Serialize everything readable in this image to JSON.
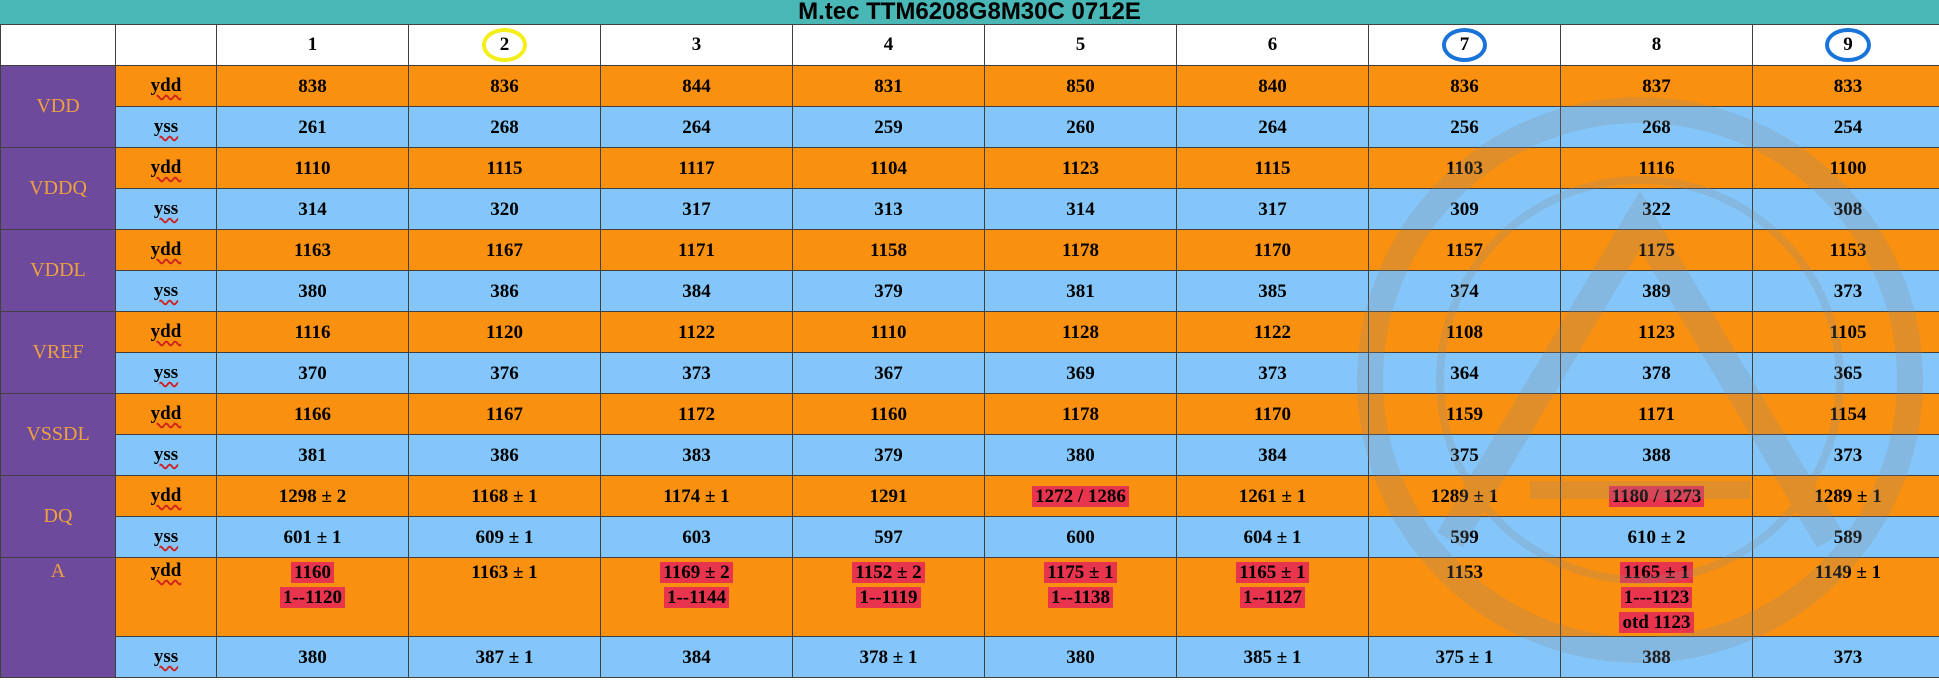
{
  "title": "M.tec TTM6208G8M30C 0712E",
  "columns": [
    "1",
    "2",
    "3",
    "4",
    "5",
    "6",
    "7",
    "8",
    "9"
  ],
  "column_marks": {
    "2": "yellow-circle",
    "7": "blue-circle",
    "9": "blue-circle"
  },
  "colors": {
    "header_bar": "#4ab7b7",
    "ydd_row": "#f9900f",
    "yss_row": "#84c6f9",
    "group_cell": "#6d4a9c",
    "group_text": "#f0a040",
    "highlight": "#e8344c"
  },
  "groups": [
    {
      "name": "VDD",
      "rows": [
        {
          "label": "ydd",
          "cells": [
            [
              "838"
            ],
            [
              "836"
            ],
            [
              "844"
            ],
            [
              "831"
            ],
            [
              "850"
            ],
            [
              "840"
            ],
            [
              "836"
            ],
            [
              "837"
            ],
            [
              "833"
            ]
          ],
          "highlight": []
        },
        {
          "label": "yss",
          "cells": [
            [
              "261"
            ],
            [
              "268"
            ],
            [
              "264"
            ],
            [
              "259"
            ],
            [
              "260"
            ],
            [
              "264"
            ],
            [
              "256"
            ],
            [
              "268"
            ],
            [
              "254"
            ]
          ],
          "highlight": []
        }
      ]
    },
    {
      "name": "VDDQ",
      "rows": [
        {
          "label": "ydd",
          "cells": [
            [
              "1110"
            ],
            [
              "1115"
            ],
            [
              "1117"
            ],
            [
              "1104"
            ],
            [
              "1123"
            ],
            [
              "1115"
            ],
            [
              "1103"
            ],
            [
              "1116"
            ],
            [
              "1100"
            ]
          ],
          "highlight": []
        },
        {
          "label": "yss",
          "cells": [
            [
              "314"
            ],
            [
              "320"
            ],
            [
              "317"
            ],
            [
              "313"
            ],
            [
              "314"
            ],
            [
              "317"
            ],
            [
              "309"
            ],
            [
              "322"
            ],
            [
              "308"
            ]
          ],
          "highlight": []
        }
      ]
    },
    {
      "name": "VDDL",
      "rows": [
        {
          "label": "ydd",
          "cells": [
            [
              "1163"
            ],
            [
              "1167"
            ],
            [
              "1171"
            ],
            [
              "1158"
            ],
            [
              "1178"
            ],
            [
              "1170"
            ],
            [
              "1157"
            ],
            [
              "1175"
            ],
            [
              "1153"
            ]
          ],
          "highlight": []
        },
        {
          "label": "yss",
          "cells": [
            [
              "380"
            ],
            [
              "386"
            ],
            [
              "384"
            ],
            [
              "379"
            ],
            [
              "381"
            ],
            [
              "385"
            ],
            [
              "374"
            ],
            [
              "389"
            ],
            [
              "373"
            ]
          ],
          "highlight": []
        }
      ]
    },
    {
      "name": "VREF",
      "rows": [
        {
          "label": "ydd",
          "cells": [
            [
              "1116"
            ],
            [
              "1120"
            ],
            [
              "1122"
            ],
            [
              "1110"
            ],
            [
              "1128"
            ],
            [
              "1122"
            ],
            [
              "1108"
            ],
            [
              "1123"
            ],
            [
              "1105"
            ]
          ],
          "highlight": []
        },
        {
          "label": "yss",
          "cells": [
            [
              "370"
            ],
            [
              "376"
            ],
            [
              "373"
            ],
            [
              "367"
            ],
            [
              "369"
            ],
            [
              "373"
            ],
            [
              "364"
            ],
            [
              "378"
            ],
            [
              "365"
            ]
          ],
          "highlight": []
        }
      ]
    },
    {
      "name": "VSSDL",
      "rows": [
        {
          "label": "ydd",
          "cells": [
            [
              "1166"
            ],
            [
              "1167"
            ],
            [
              "1172"
            ],
            [
              "1160"
            ],
            [
              "1178"
            ],
            [
              "1170"
            ],
            [
              "1159"
            ],
            [
              "1171"
            ],
            [
              "1154"
            ]
          ],
          "highlight": []
        },
        {
          "label": "yss",
          "cells": [
            [
              "381"
            ],
            [
              "386"
            ],
            [
              "383"
            ],
            [
              "379"
            ],
            [
              "380"
            ],
            [
              "384"
            ],
            [
              "375"
            ],
            [
              "388"
            ],
            [
              "373"
            ]
          ],
          "highlight": []
        }
      ]
    },
    {
      "name": "DQ",
      "rows": [
        {
          "label": "ydd",
          "cells": [
            [
              "1298 ± 2"
            ],
            [
              "1168 ± 1"
            ],
            [
              "1174 ± 1"
            ],
            [
              "1291"
            ],
            [
              "1272 / 1286"
            ],
            [
              "1261 ± 1"
            ],
            [
              "1289 ± 1"
            ],
            [
              "1180 / 1273"
            ],
            [
              "1289 ± 1"
            ]
          ],
          "highlight": [
            4,
            7
          ]
        },
        {
          "label": "yss",
          "cells": [
            [
              "601 ± 1"
            ],
            [
              "609 ± 1"
            ],
            [
              "603"
            ],
            [
              "597"
            ],
            [
              "600"
            ],
            [
              "604 ± 1"
            ],
            [
              "599"
            ],
            [
              "610 ± 2"
            ],
            [
              "589"
            ]
          ],
          "highlight": []
        }
      ]
    },
    {
      "name": "A",
      "rows": [
        {
          "label": "ydd",
          "tall": true,
          "cells": [
            [
              "1160",
              "1--1120"
            ],
            [
              "1163 ± 1"
            ],
            [
              "1169 ± 2",
              "1--1144"
            ],
            [
              "1152 ± 2",
              "1--1119"
            ],
            [
              "1175 ± 1",
              "1--1138"
            ],
            [
              "1165 ± 1",
              "1--1127"
            ],
            [
              "1153"
            ],
            [
              "1165 ± 1",
              "1---1123",
              "otd  1123"
            ],
            [
              "1149 ± 1"
            ]
          ],
          "highlight": [
            0,
            2,
            3,
            4,
            5,
            7
          ]
        },
        {
          "label": "yss",
          "cells": [
            [
              "380"
            ],
            [
              "387 ± 1"
            ],
            [
              "384"
            ],
            [
              "378 ± 1"
            ],
            [
              "380"
            ],
            [
              "385 ± 1"
            ],
            [
              "375 ± 1"
            ],
            [
              "388"
            ],
            [
              "373"
            ]
          ],
          "highlight": []
        }
      ]
    }
  ]
}
